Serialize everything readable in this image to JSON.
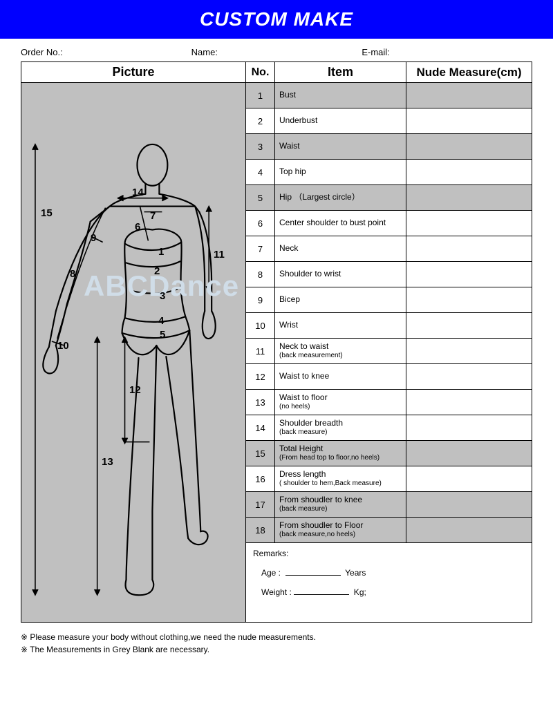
{
  "header": {
    "title": "CUSTOM MAKE"
  },
  "info": {
    "order_no_label": "Order No.:",
    "name_label": "Name:",
    "email_label": "E-mail:"
  },
  "columns": {
    "picture": "Picture",
    "no": "No.",
    "item": "Item",
    "measure": "Nude Measure(cm)"
  },
  "rows": [
    {
      "no": "1",
      "item": "Bust",
      "sub": "",
      "shaded": true
    },
    {
      "no": "2",
      "item": "Underbust",
      "sub": "",
      "shaded": false
    },
    {
      "no": "3",
      "item": "Waist",
      "sub": "",
      "shaded": true
    },
    {
      "no": "4",
      "item": "Top hip",
      "sub": "",
      "shaded": false
    },
    {
      "no": "5",
      "item": "Hip （Largest circle）",
      "sub": "",
      "shaded": true
    },
    {
      "no": "6",
      "item": " Center shoulder to bust point",
      "sub": "",
      "shaded": false
    },
    {
      "no": "7",
      "item": "Neck",
      "sub": "",
      "shaded": false
    },
    {
      "no": "8",
      "item": "Shoulder to wrist",
      "sub": "",
      "shaded": false
    },
    {
      "no": "9",
      "item": "Bicep",
      "sub": "",
      "shaded": false
    },
    {
      "no": "10",
      "item": "Wrist",
      "sub": "",
      "shaded": false
    },
    {
      "no": "11",
      "item": "Neck to waist",
      "sub": "(back measurement)",
      "shaded": false
    },
    {
      "no": "12",
      "item": "Waist to knee",
      "sub": "",
      "shaded": false
    },
    {
      "no": "13",
      "item": "Waist to floor",
      "sub": "(no heels)",
      "shaded": false
    },
    {
      "no": "14",
      "item": "Shoulder breadth",
      "sub": "(back measure)",
      "shaded": false
    },
    {
      "no": "15",
      "item": "Total Height",
      "sub": "(From head top to floor,no heels)",
      "shaded": true
    },
    {
      "no": "16",
      "item": "Dress length",
      "sub": "( shoulder to hem,Back measure)",
      "shaded": false
    },
    {
      "no": "17",
      "item": "From shoudler to knee",
      "sub": "(back measure)",
      "shaded": true
    },
    {
      "no": "18",
      "item": "From shoudler to Floor",
      "sub": "(back measure,no heels)",
      "shaded": true
    }
  ],
  "remarks": {
    "label": "Remarks:",
    "age_label": "Age  :",
    "age_unit": "Years",
    "weight_label": "Weight :",
    "weight_unit": "Kg;"
  },
  "footnotes": {
    "line1": "※ Please measure your body without clothing,we need the nude measurements.",
    "line2": "※ The Measurements in Grey  Blank are necessary."
  },
  "watermark": "ABCDance",
  "figure_labels": {
    "l1": "1",
    "l2": "2",
    "l3": "3",
    "l4": "4",
    "l5": "5",
    "l6": "6",
    "l7": "7",
    "l8": "8",
    "l9": "9",
    "l10": "10",
    "l11": "11",
    "l12": "12",
    "l13": "13",
    "l14": "14",
    "l15": "15"
  },
  "colors": {
    "header_bg": "#0000ff",
    "header_fg": "#ffffff",
    "shaded_bg": "#c0c0c0",
    "border": "#000000",
    "watermark": "#d0dde8"
  }
}
